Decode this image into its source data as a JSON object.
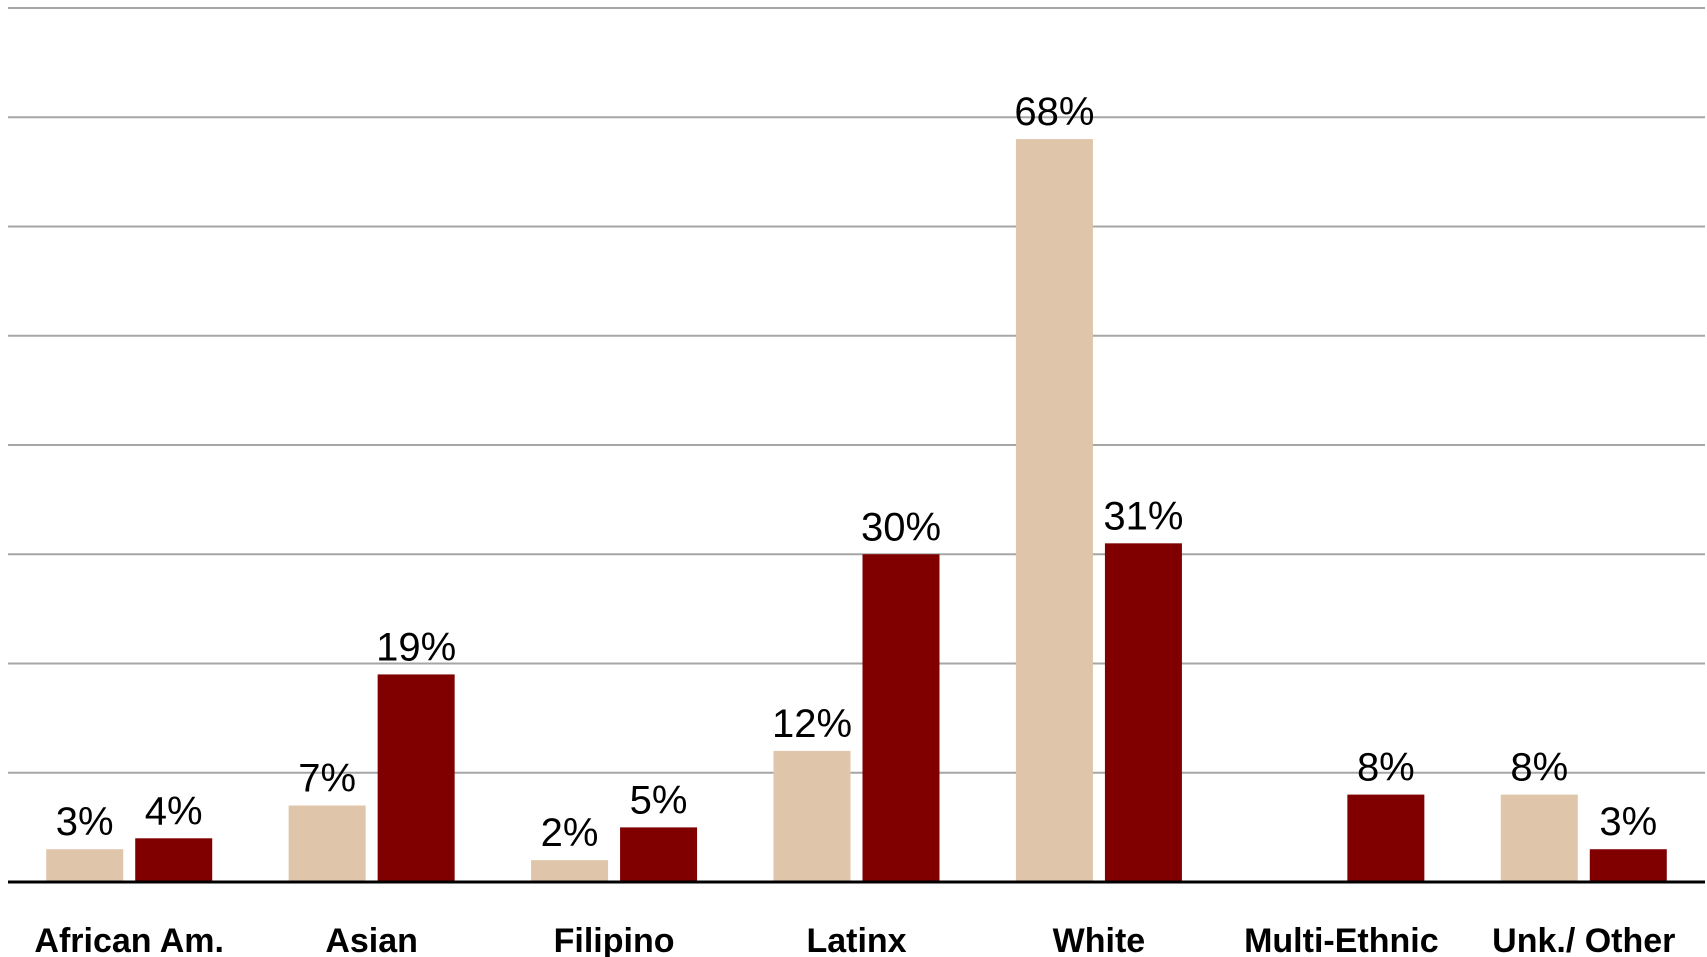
{
  "chart_data": {
    "type": "bar",
    "categories": [
      "African Am.",
      "Asian",
      "Filipino",
      "Latinx",
      "White",
      "Multi-Ethnic",
      "Unk./ Other"
    ],
    "series": [
      {
        "color": "#dfc5aa",
        "values": [
          3,
          7,
          2,
          12,
          68,
          null,
          8
        ],
        "labels": [
          "3%",
          "7%",
          "2%",
          "12%",
          "68%",
          "",
          "8%"
        ]
      },
      {
        "color": "#800000",
        "values": [
          4,
          19,
          5,
          30,
          31,
          8,
          3
        ],
        "labels": [
          "4%",
          "19%",
          "5%",
          "30%",
          "31%",
          "8%",
          "3%"
        ]
      }
    ],
    "ylim": [
      0,
      80
    ],
    "grid": true,
    "legend": false
  }
}
